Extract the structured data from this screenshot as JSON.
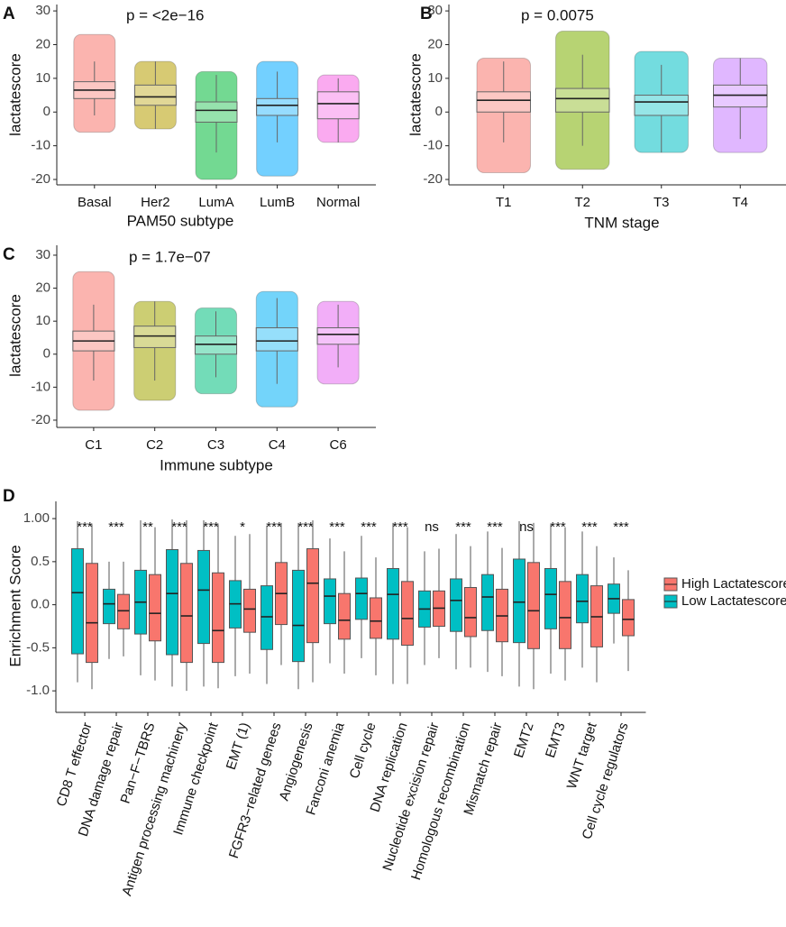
{
  "chart_data": [
    {
      "type": "box",
      "panel": "A",
      "annotation": "p = <2e−16",
      "xlabel": "PAM50 subtype",
      "ylabel": "lactatescore",
      "categories": [
        "Basal",
        "Her2",
        "LumA",
        "LumB",
        "Normal"
      ],
      "colors": [
        "#f8766d",
        "#b79f00",
        "#00ba38",
        "#00a9ff",
        "#f564e3"
      ],
      "series": [
        {
          "values": [
            [
              -1,
              4,
              6.5,
              9,
              15
            ],
            [
              -5,
              2,
              4.5,
              8,
              15
            ],
            [
              -12,
              -3,
              0.5,
              3,
              11
            ],
            [
              -9,
              -1,
              2,
              4,
              12
            ],
            [
              -9,
              -2,
              2.5,
              6,
              10
            ]
          ]
        }
      ],
      "point_range": [
        [
          -6,
          23
        ],
        [
          -5,
          15
        ],
        [
          -20,
          12
        ],
        [
          -19,
          15
        ],
        [
          -9,
          11
        ]
      ],
      "ylim": [
        -21.6,
        31.9
      ],
      "yticks": [
        -20,
        -10,
        0,
        10,
        20,
        30
      ]
    },
    {
      "type": "box",
      "panel": "B",
      "annotation": "p = 0.0075",
      "xlabel": "TNM stage",
      "ylabel": "lactatescore",
      "categories": [
        "T1",
        "T2",
        "T3",
        "T4"
      ],
      "colors": [
        "#f8766d",
        "#7cae00",
        "#00bfc4",
        "#c77cff"
      ],
      "series": [
        {
          "values": [
            [
              -9,
              0,
              3.5,
              6,
              15
            ],
            [
              -10,
              0,
              4,
              7,
              17
            ],
            [
              -12,
              -1,
              3,
              5,
              14
            ],
            [
              -8,
              1.5,
              5,
              8,
              16
            ]
          ]
        }
      ],
      "point_range": [
        [
          -18,
          16
        ],
        [
          -17,
          24
        ],
        [
          -12,
          18
        ],
        [
          -12,
          16
        ]
      ],
      "ylim": [
        -21.6,
        31.9
      ],
      "yticks": [
        -20,
        -10,
        0,
        10,
        20,
        30
      ]
    },
    {
      "type": "box",
      "panel": "C",
      "annotation": "p = 1.7e−07",
      "xlabel": "Immune subtype",
      "ylabel": "lactatescore",
      "categories": [
        "C1",
        "C2",
        "C3",
        "C4",
        "C6"
      ],
      "colors": [
        "#f8766d",
        "#a3a500",
        "#00bf7d",
        "#00b0f6",
        "#e76bf3"
      ],
      "series": [
        {
          "values": [
            [
              -8,
              1,
              4,
              7,
              15
            ],
            [
              -8,
              2,
              5.5,
              8.5,
              16
            ],
            [
              -7,
              0,
              3,
              5.5,
              13
            ],
            [
              -9,
              1,
              4,
              8,
              17
            ],
            [
              -4,
              3,
              6,
              8,
              15
            ]
          ]
        }
      ],
      "point_range": [
        [
          -17,
          25
        ],
        [
          -14,
          16
        ],
        [
          -12,
          14
        ],
        [
          -16,
          19
        ],
        [
          -9,
          16
        ]
      ],
      "ylim": [
        -22.2,
        33
      ],
      "yticks": [
        -20,
        -10,
        0,
        10,
        20,
        30
      ]
    },
    {
      "type": "groupbox",
      "panel": "D",
      "ylabel": "Enrichment Score",
      "categories": [
        "CD8 T effector",
        "DNA damage repair",
        "Pan−F−TBRS",
        "Antigen processing machinery",
        "Immune checkpoint",
        "EMT (1)",
        "FGFR3−related genees",
        "Angiogenesis",
        "Fanconi anemia",
        "Cell cycle",
        "DNA replication",
        "Nucleotide excision repair",
        "Homologous recombination",
        "Mismatch repair",
        "EMT2",
        "EMT3",
        "WNT target",
        "Cell cycle regulators"
      ],
      "significance": [
        "***",
        "***",
        "**",
        "***",
        "***",
        "*",
        "***",
        "***",
        "***",
        "***",
        "***",
        "ns",
        "***",
        "***",
        "ns",
        "***",
        "***",
        "***"
      ],
      "series": [
        {
          "name": "High Lactatescore",
          "color": "#f8766d",
          "values": [
            [
              -0.98,
              -0.67,
              -0.21,
              0.48,
              0.93
            ],
            [
              -0.6,
              -0.28,
              -0.07,
              0.12,
              0.5
            ],
            [
              -0.88,
              -0.42,
              -0.1,
              0.35,
              0.9
            ],
            [
              -1.0,
              -0.67,
              -0.13,
              0.48,
              0.98
            ],
            [
              -0.97,
              -0.67,
              -0.3,
              0.37,
              0.93
            ],
            [
              -0.8,
              -0.32,
              -0.05,
              0.18,
              0.82
            ],
            [
              -0.7,
              -0.23,
              0.13,
              0.49,
              0.95
            ],
            [
              -0.9,
              -0.44,
              0.25,
              0.65,
              0.98
            ],
            [
              -0.8,
              -0.4,
              -0.18,
              0.13,
              0.62
            ],
            [
              -0.82,
              -0.39,
              -0.19,
              0.08,
              0.55
            ],
            [
              -0.92,
              -0.47,
              -0.16,
              0.27,
              0.9
            ],
            [
              -0.62,
              -0.25,
              -0.04,
              0.16,
              0.65
            ],
            [
              -0.73,
              -0.37,
              -0.15,
              0.2,
              0.68
            ],
            [
              -0.83,
              -0.43,
              -0.13,
              0.18,
              0.66
            ],
            [
              -0.98,
              -0.51,
              -0.07,
              0.49,
              0.95
            ],
            [
              -0.88,
              -0.51,
              -0.15,
              0.27,
              0.9
            ],
            [
              -0.9,
              -0.49,
              -0.14,
              0.22,
              0.68
            ],
            [
              -0.77,
              -0.36,
              -0.17,
              0.06,
              0.4
            ]
          ]
        },
        {
          "name": "Low Lactatescore",
          "color": "#00bfc4",
          "values": [
            [
              -0.9,
              -0.57,
              0.14,
              0.65,
              0.97
            ],
            [
              -0.63,
              -0.22,
              0.01,
              0.18,
              0.5
            ],
            [
              -0.82,
              -0.34,
              0.03,
              0.4,
              0.98
            ],
            [
              -0.95,
              -0.58,
              0.13,
              0.64,
              0.99
            ],
            [
              -0.95,
              -0.45,
              0.17,
              0.63,
              0.98
            ],
            [
              -0.83,
              -0.27,
              0.01,
              0.28,
              0.8
            ],
            [
              -0.92,
              -0.52,
              -0.14,
              0.22,
              0.92
            ],
            [
              -0.98,
              -0.66,
              -0.24,
              0.4,
              0.95
            ],
            [
              -0.68,
              -0.22,
              0.1,
              0.3,
              0.77
            ],
            [
              -0.62,
              -0.17,
              0.13,
              0.31,
              0.8
            ],
            [
              -0.92,
              -0.4,
              0.12,
              0.42,
              0.95
            ],
            [
              -0.7,
              -0.26,
              -0.05,
              0.16,
              0.62
            ],
            [
              -0.75,
              -0.31,
              0.05,
              0.3,
              0.82
            ],
            [
              -0.78,
              -0.3,
              0.09,
              0.35,
              0.85
            ],
            [
              -0.95,
              -0.44,
              0.03,
              0.53,
              0.97
            ],
            [
              -0.8,
              -0.28,
              0.12,
              0.42,
              0.93
            ],
            [
              -0.73,
              -0.21,
              0.04,
              0.35,
              0.85
            ],
            [
              -0.45,
              -0.1,
              0.07,
              0.24,
              0.55
            ]
          ]
        }
      ],
      "ylim": [
        -1.25,
        1.2
      ],
      "yticks": [
        {
          "value": -1,
          "label": "-1.0"
        },
        -0.5,
        {
          "value": 0,
          "label": "0.0"
        },
        0.5,
        {
          "value": 1,
          "label": "1.00"
        }
      ]
    }
  ]
}
